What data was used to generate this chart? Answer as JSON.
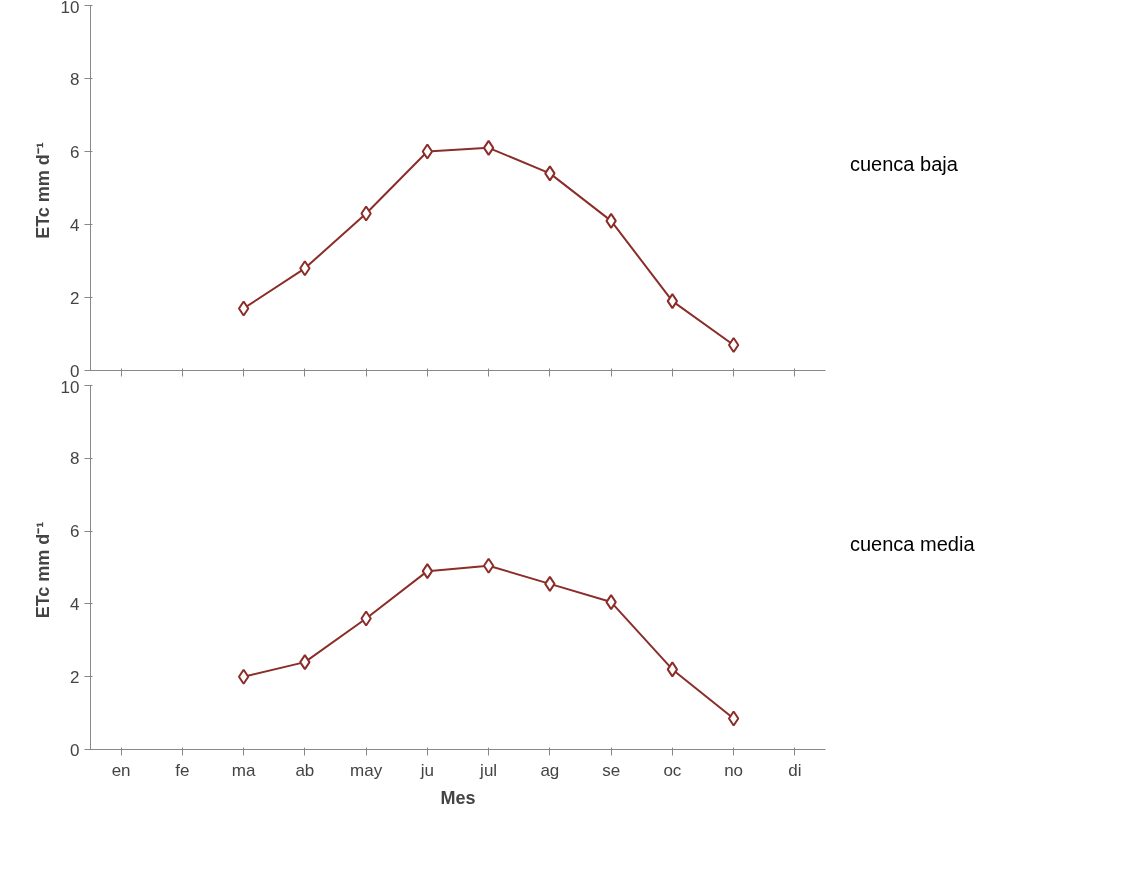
{
  "chart_data": [
    {
      "type": "line",
      "categories": [
        null,
        null,
        null,
        null,
        null,
        null,
        null,
        null,
        null,
        null,
        null,
        null
      ],
      "ylabel": "ETc  mm d⁻¹",
      "ylim": [
        0,
        10
      ],
      "yticks": [
        0,
        2,
        4,
        6,
        8,
        10
      ],
      "marker": "diamond",
      "grid": false,
      "annotations": [
        "cuenca baja"
      ],
      "series": [
        {
          "color": "#8b2e2a",
          "values": [
            null,
            null,
            1.7,
            2.8,
            4.3,
            6.0,
            6.1,
            5.4,
            4.1,
            1.9,
            0.7,
            null
          ]
        }
      ]
    },
    {
      "type": "line",
      "categories": [
        "en",
        "fe",
        "ma",
        "ab",
        "may",
        "ju",
        "jul",
        "ag",
        "se",
        "oc",
        "no",
        "di"
      ],
      "xlabel": "Mes",
      "ylabel": "ETc  mm d⁻¹",
      "ylim": [
        0,
        10
      ],
      "yticks": [
        0,
        2,
        4,
        6,
        8,
        10
      ],
      "marker": "diamond",
      "grid": false,
      "annotations": [
        "cuenca media"
      ],
      "series": [
        {
          "color": "#8b2e2a",
          "values": [
            null,
            null,
            2.0,
            2.4,
            3.6,
            4.9,
            5.05,
            4.55,
            4.05,
            2.2,
            0.85,
            null
          ]
        }
      ]
    }
  ]
}
